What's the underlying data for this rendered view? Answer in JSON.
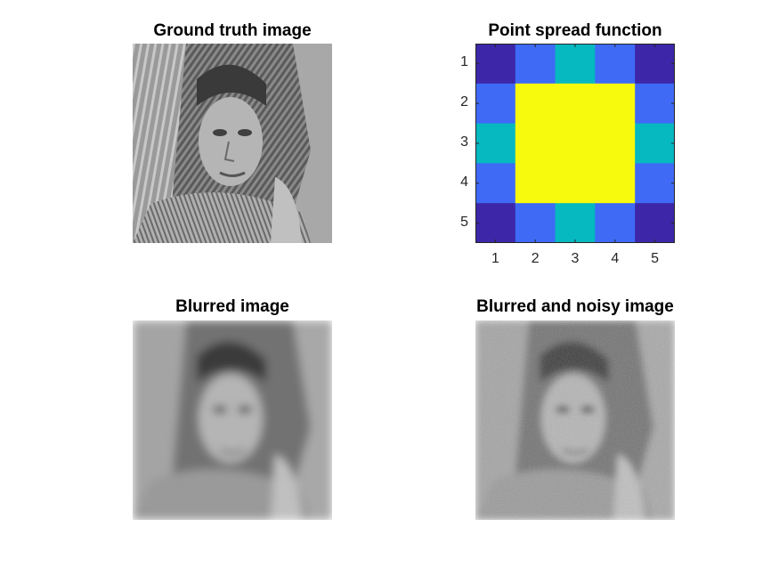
{
  "panels": {
    "ground_truth": {
      "title": "Ground truth image",
      "image": "grayscale-portrait-woman-headscarf-sharp"
    },
    "psf": {
      "title": "Point spread function"
    },
    "blurred": {
      "title": "Blurred image",
      "image": "grayscale-portrait-woman-headscarf-blurred"
    },
    "blurred_noisy": {
      "title": "Blurred and noisy image",
      "image": "grayscale-portrait-woman-headscarf-blurred-noisy"
    }
  },
  "chart_data": {
    "type": "heatmap",
    "title": "Point spread function",
    "x": [
      1,
      2,
      3,
      4,
      5
    ],
    "y": [
      1,
      2,
      3,
      4,
      5
    ],
    "xticks": [
      "1",
      "2",
      "3",
      "4",
      "5"
    ],
    "yticks": [
      "1",
      "2",
      "3",
      "4",
      "5"
    ],
    "values": [
      [
        0.1,
        0.35,
        0.55,
        0.35,
        0.1
      ],
      [
        0.35,
        1.0,
        1.0,
        1.0,
        0.35
      ],
      [
        0.55,
        1.0,
        1.0,
        1.0,
        0.55
      ],
      [
        0.35,
        1.0,
        1.0,
        1.0,
        0.35
      ],
      [
        0.1,
        0.35,
        0.55,
        0.35,
        0.1
      ]
    ],
    "colormap": {
      "0.1": "#3d26a8",
      "0.35": "#3e6af6",
      "0.55": "#06b8c0",
      "1.0": "#f8fa0d"
    },
    "grid": false,
    "y_direction": "reverse"
  }
}
